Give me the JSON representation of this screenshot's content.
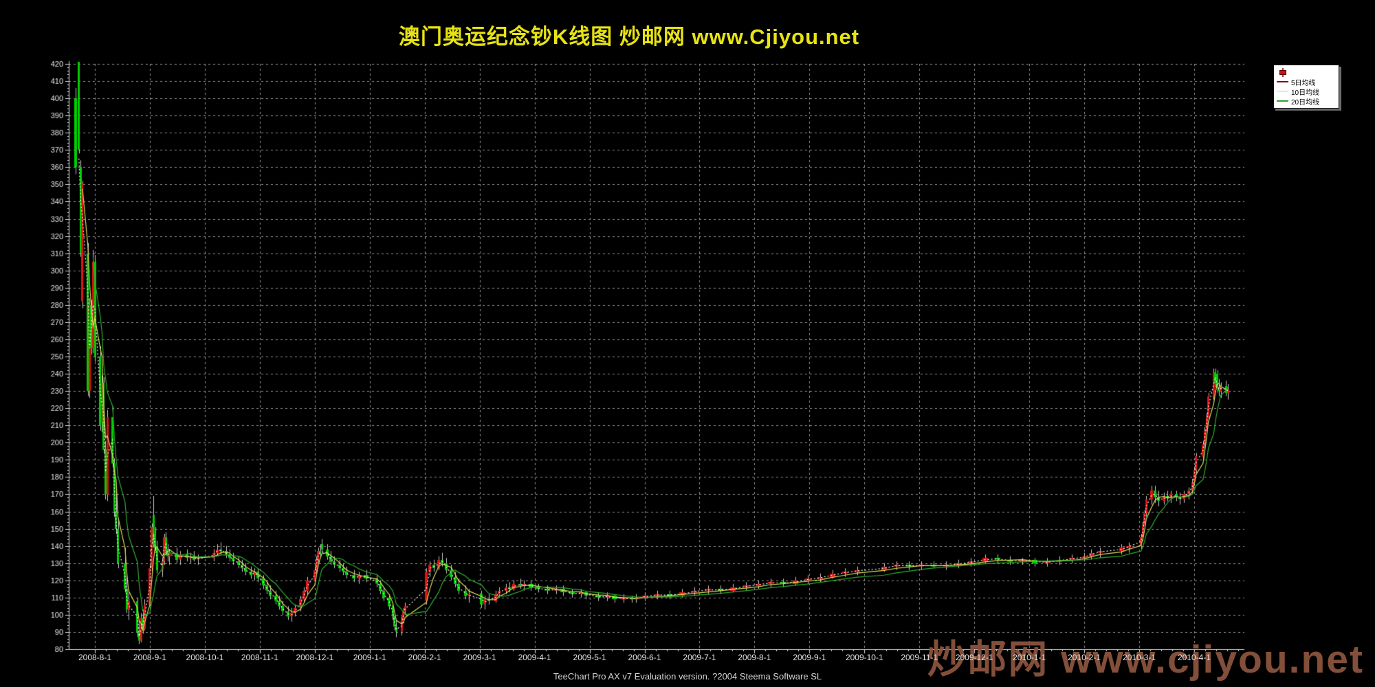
{
  "title": {
    "text": "澳门奥运纪念钞K线图  炒邮网 www.Cjiyou.net",
    "color": "#e8e312"
  },
  "footer": {
    "text": "TeeChart Pro AX v7 Evaluation version. ?2004 Steema Software SL"
  },
  "watermark": {
    "text": "炒邮网 www.cjiyou.net",
    "color": "#8b543e"
  },
  "legend": {
    "items": [
      {
        "label": "",
        "type": "candlestick",
        "color": "#cc1111"
      },
      {
        "label": "5日均线",
        "type": "line",
        "color": "#8b0000"
      },
      {
        "label": "10日均线",
        "type": "line",
        "color": "#e9e9b8"
      },
      {
        "label": "20日均线",
        "type": "line",
        "color": "#2f9e2f"
      }
    ]
  },
  "chart_data": {
    "type": "candlestick",
    "title": "澳门奥运纪念钞K线图",
    "xlabel": "",
    "ylabel": "",
    "ylim": [
      80,
      420
    ],
    "y_tick_step": 10,
    "grid": true,
    "legend_position": "top-right",
    "up_color": "#e31212",
    "down_color": "#00cf00",
    "wick_color": "#c8c8c8",
    "grid_color": "#969696",
    "axis_color": "#e0e0e0",
    "label_color": "#e6e6e6",
    "x_ticks": [
      "2008-8-1",
      "2008-9-1",
      "2008-10-1",
      "2008-11-1",
      "2008-12-1",
      "2009-1-1",
      "2009-2-1",
      "2009-3-1",
      "2009-4-1",
      "2009-5-1",
      "2009-6-1",
      "2009-7-1",
      "2009-8-1",
      "2009-9-1",
      "2009-10-1",
      "2009-11-1",
      "2009-12-1",
      "2010-1-1",
      "2010-2-1",
      "2010-3-1",
      "2010-4-1"
    ],
    "ma_series": [
      {
        "name": "5日均线",
        "color": "#ffffff",
        "window": 2,
        "dotted": true
      },
      {
        "name": "10日均线",
        "color": "#dede5a",
        "window": 4,
        "dotted": false
      },
      {
        "name": "20日均线",
        "color": "#2eae2e",
        "window": 8,
        "dotted": false
      }
    ],
    "candles": [
      [
        "2008-7-21",
        400,
        406,
        356,
        360
      ],
      [
        "2008-7-23",
        421,
        421,
        368,
        370
      ],
      [
        "2008-7-24",
        360,
        364,
        308,
        310
      ],
      [
        "2008-7-25",
        282,
        352,
        278,
        350
      ],
      [
        "2008-7-28",
        310,
        316,
        227,
        230
      ],
      [
        "2008-7-29",
        230,
        284,
        226,
        280
      ],
      [
        "2008-7-30",
        280,
        283,
        251,
        255
      ],
      [
        "2008-7-31",
        255,
        312,
        252,
        305
      ],
      [
        "2008-8-1",
        305,
        309,
        247,
        250
      ],
      [
        "2008-8-4",
        250,
        256,
        207,
        210
      ],
      [
        "2008-8-5",
        212,
        239,
        206,
        235
      ],
      [
        "2008-8-6",
        235,
        238,
        194,
        196
      ],
      [
        "2008-8-7",
        196,
        201,
        167,
        170
      ],
      [
        "2008-8-8",
        170,
        219,
        166,
        215
      ],
      [
        "2008-8-11",
        215,
        221,
        186,
        188
      ],
      [
        "2008-8-12",
        188,
        191,
        157,
        160
      ],
      [
        "2008-8-13",
        160,
        173,
        147,
        150
      ],
      [
        "2008-8-14",
        150,
        156,
        127,
        130
      ],
      [
        "2008-8-18",
        130,
        139,
        113,
        115
      ],
      [
        "2008-8-19",
        115,
        123,
        101,
        103
      ],
      [
        "2008-8-20",
        103,
        113,
        97,
        108
      ],
      [
        "2008-8-25",
        108,
        110,
        87,
        90
      ],
      [
        "2008-8-26",
        90,
        97,
        83,
        85
      ],
      [
        "2008-8-27",
        85,
        101,
        84,
        98
      ],
      [
        "2008-8-28",
        98,
        103,
        89,
        92
      ],
      [
        "2008-8-29",
        92,
        109,
        91,
        106
      ],
      [
        "2008-9-1",
        106,
        129,
        105,
        127
      ],
      [
        "2008-9-2",
        127,
        153,
        125,
        151
      ],
      [
        "2008-9-3",
        158,
        169,
        139,
        141
      ],
      [
        "2008-9-4",
        147,
        151,
        137,
        139
      ],
      [
        "2008-9-5",
        140,
        143,
        124,
        126
      ],
      [
        "2008-9-8",
        126,
        133,
        122,
        131
      ],
      [
        "2008-9-9",
        131,
        147,
        129,
        145
      ],
      [
        "2008-9-10",
        145,
        148,
        135,
        137
      ],
      [
        "2008-9-11",
        137,
        141,
        131,
        134
      ],
      [
        "2008-9-12",
        134,
        138,
        129,
        136
      ],
      [
        "2008-9-16",
        136,
        139,
        130,
        132
      ],
      [
        "2008-9-18",
        132,
        137,
        129,
        135
      ],
      [
        "2008-9-22",
        135,
        138,
        131,
        133
      ],
      [
        "2008-9-24",
        133,
        136,
        130,
        134
      ],
      [
        "2008-9-26",
        134,
        137,
        131,
        132
      ],
      [
        "2008-9-28",
        132,
        135,
        129,
        133
      ],
      [
        "2008-10-6",
        133,
        138,
        131,
        136
      ],
      [
        "2008-10-8",
        136,
        141,
        134,
        138
      ],
      [
        "2008-10-10",
        138,
        142,
        135,
        137
      ],
      [
        "2008-10-13",
        137,
        140,
        133,
        135
      ],
      [
        "2008-10-15",
        135,
        138,
        131,
        133
      ],
      [
        "2008-10-17",
        133,
        136,
        129,
        131
      ],
      [
        "2008-10-20",
        131,
        134,
        127,
        129
      ],
      [
        "2008-10-22",
        129,
        132,
        125,
        127
      ],
      [
        "2008-10-24",
        127,
        130,
        123,
        125
      ],
      [
        "2008-10-27",
        125,
        128,
        121,
        123
      ],
      [
        "2008-10-29",
        123,
        127,
        120,
        125
      ],
      [
        "2008-10-31",
        125,
        127,
        119,
        121
      ],
      [
        "2008-11-3",
        121,
        123,
        115,
        117
      ],
      [
        "2008-11-5",
        117,
        120,
        112,
        114
      ],
      [
        "2008-11-7",
        114,
        117,
        109,
        111
      ],
      [
        "2008-11-10",
        111,
        114,
        106,
        108
      ],
      [
        "2008-11-12",
        108,
        111,
        103,
        105
      ],
      [
        "2008-11-14",
        105,
        108,
        100,
        102
      ],
      [
        "2008-11-17",
        102,
        105,
        97,
        99
      ],
      [
        "2008-11-19",
        99,
        104,
        96,
        101
      ],
      [
        "2008-11-21",
        101,
        106,
        99,
        104
      ],
      [
        "2008-11-24",
        104,
        111,
        102,
        109
      ],
      [
        "2008-11-26",
        109,
        116,
        107,
        114
      ],
      [
        "2008-11-28",
        114,
        122,
        112,
        120
      ],
      [
        "2008-12-1",
        120,
        128,
        118,
        126
      ],
      [
        "2008-12-2",
        126,
        134,
        124,
        132
      ],
      [
        "2008-12-3",
        132,
        139,
        130,
        137
      ],
      [
        "2008-12-4",
        137,
        141,
        133,
        135
      ],
      [
        "2008-12-5",
        141,
        144,
        136,
        138
      ],
      [
        "2008-12-8",
        138,
        141,
        132,
        134
      ],
      [
        "2008-12-10",
        134,
        137,
        129,
        131
      ],
      [
        "2008-12-12",
        131,
        134,
        127,
        129
      ],
      [
        "2008-12-15",
        129,
        132,
        125,
        127
      ],
      [
        "2008-12-17",
        127,
        130,
        123,
        125
      ],
      [
        "2008-12-19",
        125,
        128,
        121,
        123
      ],
      [
        "2008-12-23",
        123,
        126,
        119,
        121
      ],
      [
        "2008-12-26",
        121,
        125,
        118,
        123
      ],
      [
        "2008-12-30",
        123,
        126,
        119,
        121
      ],
      [
        "2009-1-5",
        121,
        123,
        116,
        118
      ],
      [
        "2009-1-7",
        118,
        120,
        112,
        114
      ],
      [
        "2009-1-9",
        114,
        116,
        108,
        110
      ],
      [
        "2009-1-12",
        110,
        112,
        103,
        105
      ],
      [
        "2009-1-14",
        105,
        107,
        97,
        99
      ],
      [
        "2009-1-15",
        99,
        101,
        91,
        93
      ],
      [
        "2009-1-16",
        93,
        97,
        87,
        90
      ],
      [
        "2009-1-19",
        90,
        99,
        88,
        97
      ],
      [
        "2009-1-20",
        97,
        104,
        95,
        102
      ],
      [
        "2009-1-21",
        102,
        107,
        100,
        105
      ],
      [
        "2009-2-2",
        108,
        127,
        106,
        125
      ],
      [
        "2009-2-4",
        125,
        131,
        122,
        129
      ],
      [
        "2009-2-6",
        129,
        132,
        125,
        127
      ],
      [
        "2009-2-9",
        127,
        134,
        126,
        132
      ],
      [
        "2009-2-11",
        132,
        136,
        128,
        130
      ],
      [
        "2009-2-13",
        130,
        133,
        124,
        126
      ],
      [
        "2009-2-16",
        126,
        129,
        120,
        122
      ],
      [
        "2009-2-18",
        122,
        125,
        116,
        118
      ],
      [
        "2009-2-20",
        118,
        121,
        112,
        114
      ],
      [
        "2009-2-24",
        114,
        117,
        109,
        111
      ],
      [
        "2009-2-26",
        111,
        115,
        107,
        112
      ],
      [
        "2009-3-2",
        112,
        114,
        104,
        106
      ],
      [
        "2009-3-4",
        106,
        111,
        103,
        109
      ],
      [
        "2009-3-6",
        109,
        112,
        106,
        108
      ],
      [
        "2009-3-10",
        108,
        114,
        107,
        112
      ],
      [
        "2009-3-12",
        112,
        116,
        110,
        114
      ],
      [
        "2009-3-16",
        114,
        118,
        112,
        116
      ],
      [
        "2009-3-18",
        116,
        119,
        113,
        115
      ],
      [
        "2009-3-20",
        115,
        120,
        114,
        118
      ],
      [
        "2009-3-24",
        118,
        121,
        115,
        117
      ],
      [
        "2009-3-26",
        117,
        120,
        114,
        118
      ],
      [
        "2009-3-30",
        118,
        120,
        114,
        116
      ],
      [
        "2009-4-3",
        116,
        118,
        113,
        115
      ],
      [
        "2009-4-8",
        115,
        117,
        112,
        114
      ],
      [
        "2009-4-13",
        114,
        117,
        112,
        115
      ],
      [
        "2009-4-17",
        115,
        117,
        111,
        113
      ],
      [
        "2009-4-22",
        113,
        115,
        110,
        112
      ],
      [
        "2009-4-27",
        112,
        115,
        110,
        113
      ],
      [
        "2009-4-30",
        113,
        114,
        109,
        111
      ],
      [
        "2009-5-6",
        111,
        113,
        108,
        110
      ],
      [
        "2009-5-11",
        110,
        113,
        108,
        111
      ],
      [
        "2009-5-15",
        111,
        112,
        107,
        109
      ],
      [
        "2009-5-20",
        109,
        112,
        107,
        110
      ],
      [
        "2009-5-25",
        110,
        111,
        107,
        109
      ],
      [
        "2009-5-27",
        109,
        112,
        107,
        110
      ],
      [
        "2009-6-1",
        110,
        113,
        108,
        111
      ],
      [
        "2009-6-8",
        111,
        114,
        109,
        112
      ],
      [
        "2009-6-15",
        112,
        114,
        109,
        111
      ],
      [
        "2009-6-22",
        111,
        115,
        110,
        113
      ],
      [
        "2009-6-29",
        113,
        116,
        111,
        114
      ],
      [
        "2009-7-6",
        114,
        117,
        112,
        115
      ],
      [
        "2009-7-13",
        115,
        117,
        112,
        114
      ],
      [
        "2009-7-20",
        114,
        118,
        113,
        116
      ],
      [
        "2009-7-27",
        116,
        119,
        114,
        117
      ],
      [
        "2009-8-3",
        117,
        120,
        115,
        118
      ],
      [
        "2009-8-10",
        118,
        121,
        116,
        119
      ],
      [
        "2009-8-17",
        119,
        121,
        116,
        118
      ],
      [
        "2009-8-24",
        118,
        122,
        117,
        120
      ],
      [
        "2009-8-31",
        120,
        123,
        118,
        121
      ],
      [
        "2009-9-7",
        121,
        124,
        119,
        122
      ],
      [
        "2009-9-14",
        122,
        126,
        121,
        124
      ],
      [
        "2009-9-21",
        124,
        127,
        122,
        125
      ],
      [
        "2009-9-28",
        125,
        128,
        123,
        126
      ],
      [
        "2009-10-12",
        126,
        130,
        125,
        128
      ],
      [
        "2009-10-19",
        128,
        131,
        126,
        129
      ],
      [
        "2009-10-26",
        129,
        131,
        126,
        128
      ],
      [
        "2009-11-2",
        128,
        131,
        126,
        129
      ],
      [
        "2009-11-9",
        129,
        131,
        127,
        128
      ],
      [
        "2009-11-16",
        128,
        131,
        126,
        129
      ],
      [
        "2009-11-23",
        129,
        132,
        127,
        130
      ],
      [
        "2009-11-30",
        130,
        133,
        128,
        131
      ],
      [
        "2009-12-7",
        131,
        135,
        130,
        133
      ],
      [
        "2009-12-14",
        133,
        135,
        130,
        132
      ],
      [
        "2009-12-21",
        132,
        134,
        129,
        131
      ],
      [
        "2009-12-28",
        131,
        133,
        129,
        132
      ],
      [
        "2010-1-4",
        132,
        133,
        128,
        130
      ],
      [
        "2010-1-11",
        130,
        133,
        128,
        131
      ],
      [
        "2010-1-18",
        131,
        134,
        129,
        132
      ],
      [
        "2010-1-25",
        132,
        135,
        130,
        133
      ],
      [
        "2010-2-1",
        133,
        136,
        131,
        134
      ],
      [
        "2010-2-5",
        134,
        138,
        132,
        136
      ],
      [
        "2010-2-10",
        136,
        139,
        133,
        137
      ],
      [
        "2010-2-22",
        137,
        141,
        135,
        139
      ],
      [
        "2010-2-26",
        139,
        142,
        136,
        140
      ],
      [
        "2010-3-2",
        140,
        147,
        138,
        145
      ],
      [
        "2010-3-3",
        145,
        154,
        143,
        152
      ],
      [
        "2010-3-4",
        152,
        161,
        150,
        159
      ],
      [
        "2010-3-5",
        159,
        169,
        157,
        167
      ],
      [
        "2010-3-8",
        167,
        175,
        164,
        172
      ],
      [
        "2010-3-10",
        172,
        175,
        165,
        168
      ],
      [
        "2010-3-12",
        168,
        172,
        163,
        166
      ],
      [
        "2010-3-15",
        166,
        171,
        164,
        169
      ],
      [
        "2010-3-17",
        169,
        172,
        166,
        168
      ],
      [
        "2010-3-19",
        168,
        172,
        165,
        170
      ],
      [
        "2010-3-22",
        170,
        172,
        166,
        168
      ],
      [
        "2010-3-24",
        168,
        171,
        164,
        167
      ],
      [
        "2010-3-26",
        167,
        172,
        165,
        170
      ],
      [
        "2010-3-29",
        170,
        174,
        167,
        172
      ],
      [
        "2010-3-31",
        172,
        179,
        170,
        177
      ],
      [
        "2010-4-1",
        177,
        186,
        175,
        184
      ],
      [
        "2010-4-2",
        184,
        194,
        182,
        192
      ],
      [
        "2010-4-6",
        192,
        201,
        190,
        199
      ],
      [
        "2010-4-7",
        199,
        209,
        196,
        207
      ],
      [
        "2010-4-8",
        207,
        217,
        204,
        215
      ],
      [
        "2010-4-9",
        215,
        229,
        213,
        227
      ],
      [
        "2010-4-12",
        227,
        243,
        225,
        241
      ],
      [
        "2010-4-13",
        241,
        243,
        232,
        235
      ],
      [
        "2010-4-14",
        240,
        242,
        229,
        232
      ],
      [
        "2010-4-15",
        232,
        237,
        227,
        230
      ],
      [
        "2010-4-16",
        230,
        235,
        226,
        233
      ],
      [
        "2010-4-19",
        233,
        236,
        227,
        229
      ],
      [
        "2010-4-20",
        229,
        234,
        225,
        231
      ]
    ]
  }
}
